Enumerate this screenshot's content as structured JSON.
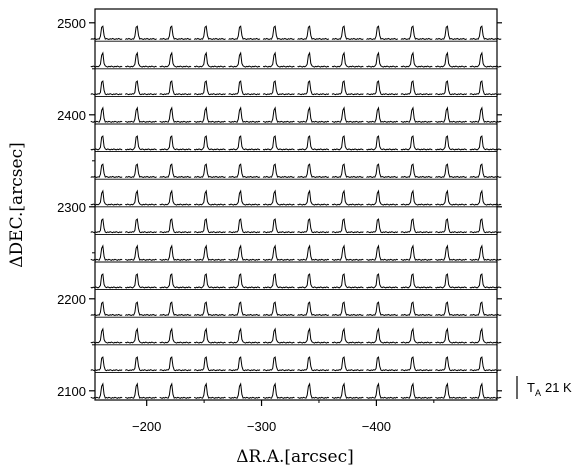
{
  "chart_data": {
    "type": "spectra-grid",
    "xlabel": "ΔR.A.[arcsec]",
    "ylabel": "ΔDEC.[arcsec]",
    "x_tick_labels": [
      "−200",
      "−300",
      "−400"
    ],
    "x_ticks": [
      -200,
      -300,
      -400
    ],
    "y_tick_labels": [
      "2100",
      "2200",
      "2300",
      "2400",
      "2500"
    ],
    "y_ticks": [
      2100,
      2200,
      2300,
      2400,
      2500
    ],
    "xlim": [
      -155,
      -505
    ],
    "ylim": [
      2090,
      2515
    ],
    "grid": {
      "ra_offsets": [
        -165,
        -195,
        -225,
        -255,
        -285,
        -315,
        -345,
        -375,
        -405,
        -435,
        -465,
        -495
      ],
      "dec_offsets": [
        2105,
        2135,
        2165,
        2195,
        2225,
        2255,
        2285,
        2315,
        2345,
        2375,
        2405,
        2435,
        2465,
        2495
      ]
    },
    "scale_bar": {
      "label": "T",
      "subscript": "A",
      "value_text": "21 K"
    }
  }
}
